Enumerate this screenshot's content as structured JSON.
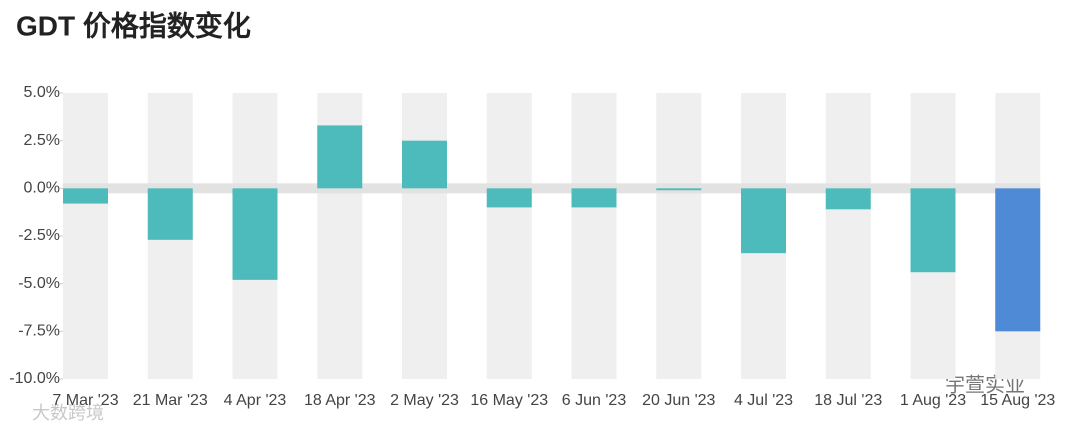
{
  "chart_data": {
    "type": "bar",
    "title": "GDT 价格指数变化",
    "categories": [
      "7 Mar '23",
      "21 Mar '23",
      "4 Apr '23",
      "18 Apr '23",
      "2 May '23",
      "16 May '23",
      "6 Jun '23",
      "20 Jun '23",
      "4 Jul '23",
      "18 Jul '23",
      "1 Aug '23",
      "15 Aug '23"
    ],
    "values": [
      -0.8,
      -2.7,
      -4.8,
      3.3,
      2.5,
      -1.0,
      -1.0,
      -0.1,
      -3.4,
      -1.1,
      -4.4,
      -7.5
    ],
    "colors": [
      "#4dbbbb",
      "#4dbbbb",
      "#4dbbbb",
      "#4dbbbb",
      "#4dbbbb",
      "#4dbbbb",
      "#4dbbbb",
      "#4dbbbb",
      "#4dbbbb",
      "#4dbbbb",
      "#4dbbbb",
      "#4f8ad6"
    ],
    "ylim": [
      -10,
      5
    ],
    "yticks": [
      {
        "value": -10,
        "label": "-10.0%"
      },
      {
        "value": -7.5,
        "label": "-7.5%"
      },
      {
        "value": -5,
        "label": "-5.0%"
      },
      {
        "value": -2.5,
        "label": "-2.5%"
      },
      {
        "value": 0,
        "label": "0.0%"
      },
      {
        "value": 2.5,
        "label": "2.5%"
      },
      {
        "value": 5,
        "label": "5.0%"
      }
    ],
    "watermarks": [
      "宇萱实业",
      "大数跨境"
    ]
  }
}
